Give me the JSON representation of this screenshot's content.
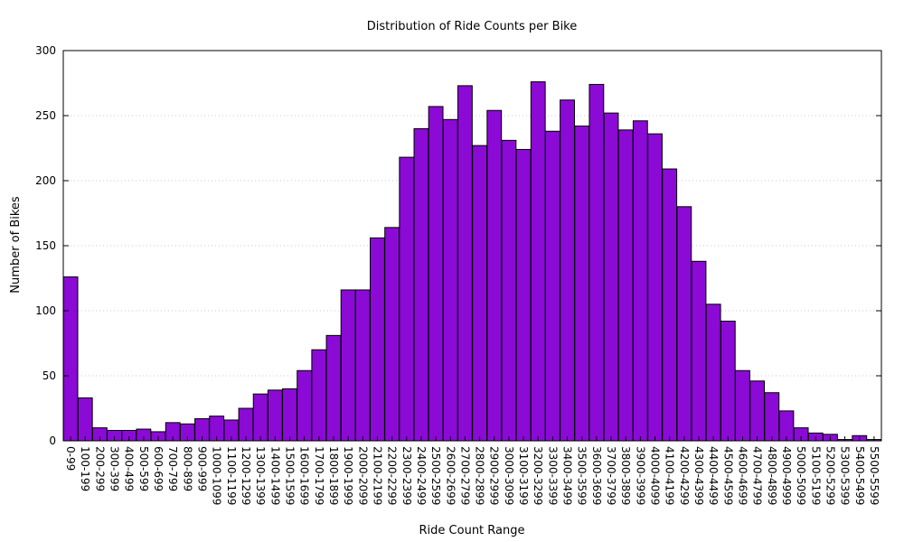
{
  "chart_data": {
    "type": "bar",
    "title": "Distribution of Ride Counts per Bike",
    "xlabel": "Ride Count Range",
    "ylabel": "Number of Bikes",
    "ylim": [
      0,
      300
    ],
    "yticks": [
      0,
      50,
      100,
      150,
      200,
      250,
      300
    ],
    "grid": "horizontal-dotted",
    "legend": "none",
    "bar_color": "#8b0ad6",
    "categories": [
      "0-99",
      "100-199",
      "200-299",
      "300-399",
      "400-499",
      "500-599",
      "600-699",
      "700-799",
      "800-899",
      "900-999",
      "1000-1099",
      "1100-1199",
      "1200-1299",
      "1300-1399",
      "1400-1499",
      "1500-1599",
      "1600-1699",
      "1700-1799",
      "1800-1899",
      "1900-1999",
      "2000-2099",
      "2100-2199",
      "2200-2299",
      "2300-2399",
      "2400-2499",
      "2500-2599",
      "2600-2699",
      "2700-2799",
      "2800-2899",
      "2900-2999",
      "3000-3099",
      "3100-3199",
      "3200-3299",
      "3300-3399",
      "3400-3499",
      "3500-3599",
      "3600-3699",
      "3700-3799",
      "3800-3899",
      "3900-3999",
      "4000-4099",
      "4100-4199",
      "4200-4299",
      "4300-4399",
      "4400-4499",
      "4500-4599",
      "4600-4699",
      "4700-4799",
      "4800-4899",
      "4900-4999",
      "5000-5099",
      "5100-5199",
      "5200-5299",
      "5300-5399",
      "5400-5499",
      "5500-5599"
    ],
    "values": [
      126,
      33,
      10,
      8,
      8,
      9,
      7,
      14,
      13,
      17,
      19,
      16,
      25,
      36,
      39,
      40,
      54,
      70,
      81,
      116,
      116,
      156,
      164,
      218,
      240,
      257,
      247,
      273,
      227,
      254,
      231,
      224,
      276,
      238,
      262,
      242,
      274,
      252,
      239,
      246,
      236,
      209,
      180,
      138,
      105,
      92,
      54,
      46,
      37,
      23,
      10,
      6,
      5,
      1,
      4,
      1
    ]
  }
}
